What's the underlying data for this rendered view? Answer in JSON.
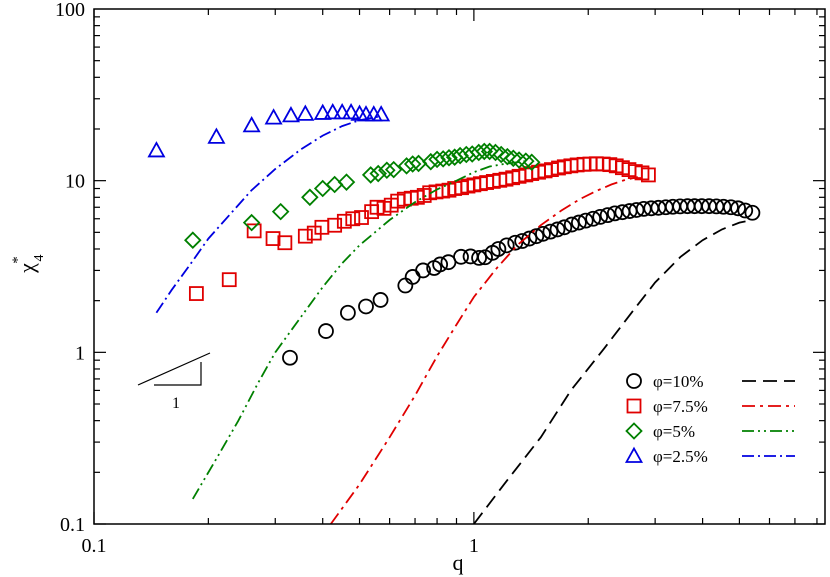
{
  "chart_data": {
    "type": "scatter",
    "title": "",
    "xlabel": "q",
    "ylabel_main": "χ",
    "ylabel_sub": "4",
    "ylabel_sup": "*",
    "xscale": "log",
    "yscale": "log",
    "xlim": [
      0.1,
      8.4
    ],
    "ylim": [
      0.1,
      100
    ],
    "x_ticks": [
      {
        "value": 0.1,
        "label": "0.1"
      },
      {
        "value": 1,
        "label": "1"
      }
    ],
    "y_ticks": [
      {
        "value": 0.1,
        "label": "0.1"
      },
      {
        "value": 1,
        "label": "1"
      },
      {
        "value": 10,
        "label": "10"
      },
      {
        "value": 100,
        "label": "100"
      }
    ],
    "legend_position": "bottom-right",
    "slope_triangle_label": "1",
    "series": [
      {
        "name": "φ=10%",
        "marker": "circle",
        "color": "#000000",
        "dash": "14,7",
        "points": [
          [
            0.328,
            0.93
          ],
          [
            0.408,
            1.33
          ],
          [
            0.466,
            1.7
          ],
          [
            0.52,
            1.85
          ],
          [
            0.568,
            2.02
          ],
          [
            0.66,
            2.45
          ],
          [
            0.69,
            2.75
          ],
          [
            0.735,
            3.0
          ],
          [
            0.786,
            3.1
          ],
          [
            0.815,
            3.25
          ],
          [
            0.857,
            3.35
          ],
          [
            0.925,
            3.6
          ],
          [
            0.98,
            3.62
          ],
          [
            1.032,
            3.55
          ],
          [
            1.07,
            3.58
          ],
          [
            1.12,
            3.8
          ],
          [
            1.16,
            4.0
          ],
          [
            1.22,
            4.2
          ],
          [
            1.285,
            4.35
          ],
          [
            1.34,
            4.45
          ],
          [
            1.4,
            4.6
          ],
          [
            1.46,
            4.75
          ],
          [
            1.52,
            4.9
          ],
          [
            1.59,
            5.05
          ],
          [
            1.66,
            5.2
          ],
          [
            1.73,
            5.35
          ],
          [
            1.81,
            5.55
          ],
          [
            1.89,
            5.7
          ],
          [
            1.97,
            5.85
          ],
          [
            2.06,
            6.0
          ],
          [
            2.15,
            6.15
          ],
          [
            2.25,
            6.3
          ],
          [
            2.35,
            6.45
          ],
          [
            2.46,
            6.55
          ],
          [
            2.57,
            6.65
          ],
          [
            2.68,
            6.75
          ],
          [
            2.8,
            6.85
          ],
          [
            2.93,
            6.9
          ],
          [
            3.06,
            6.95
          ],
          [
            3.2,
            7.0
          ],
          [
            3.34,
            7.05
          ],
          [
            3.49,
            7.08
          ],
          [
            3.65,
            7.1
          ],
          [
            3.81,
            7.1
          ],
          [
            3.98,
            7.1
          ],
          [
            4.16,
            7.1
          ],
          [
            4.35,
            7.08
          ],
          [
            4.54,
            7.05
          ],
          [
            4.75,
            7.0
          ],
          [
            4.96,
            6.9
          ],
          [
            5.18,
            6.7
          ],
          [
            5.41,
            6.5
          ]
        ],
        "theory": [
          [
            1.0,
            0.1
          ],
          [
            1.2,
            0.17
          ],
          [
            1.5,
            0.32
          ],
          [
            1.8,
            0.6
          ],
          [
            2.2,
            1.05
          ],
          [
            2.6,
            1.7
          ],
          [
            3.0,
            2.55
          ],
          [
            3.5,
            3.6
          ],
          [
            4.0,
            4.5
          ],
          [
            4.5,
            5.2
          ],
          [
            5.0,
            5.7
          ],
          [
            5.4,
            5.9
          ]
        ]
      },
      {
        "name": "φ=7.5%",
        "marker": "square",
        "color": "#e00000",
        "dash": "13,5,3,5",
        "points": [
          [
            0.186,
            2.2
          ],
          [
            0.227,
            2.65
          ],
          [
            0.264,
            5.1
          ],
          [
            0.296,
            4.6
          ],
          [
            0.318,
            4.35
          ],
          [
            0.36,
            4.75
          ],
          [
            0.38,
            4.95
          ],
          [
            0.398,
            5.35
          ],
          [
            0.43,
            5.5
          ],
          [
            0.456,
            5.8
          ],
          [
            0.48,
            6.0
          ],
          [
            0.506,
            6.1
          ],
          [
            0.538,
            6.6
          ],
          [
            0.556,
            7.0
          ],
          [
            0.58,
            6.9
          ],
          [
            0.606,
            7.2
          ],
          [
            0.63,
            7.6
          ],
          [
            0.656,
            7.8
          ],
          [
            0.684,
            7.9
          ],
          [
            0.71,
            8.0
          ],
          [
            0.74,
            8.2
          ],
          [
            0.765,
            8.5
          ],
          [
            0.795,
            8.6
          ],
          [
            0.828,
            8.7
          ],
          [
            0.86,
            8.8
          ],
          [
            0.89,
            9.0
          ],
          [
            0.928,
            9.1
          ],
          [
            0.965,
            9.3
          ],
          [
            1.0,
            9.45
          ],
          [
            1.04,
            9.6
          ],
          [
            1.08,
            9.75
          ],
          [
            1.125,
            9.9
          ],
          [
            1.17,
            10.05
          ],
          [
            1.215,
            10.2
          ],
          [
            1.265,
            10.4
          ],
          [
            1.315,
            10.6
          ],
          [
            1.37,
            10.8
          ],
          [
            1.42,
            11.0
          ],
          [
            1.48,
            11.2
          ],
          [
            1.54,
            11.4
          ],
          [
            1.6,
            11.6
          ],
          [
            1.67,
            11.85
          ],
          [
            1.73,
            12.05
          ],
          [
            1.8,
            12.2
          ],
          [
            1.87,
            12.35
          ],
          [
            1.95,
            12.45
          ],
          [
            2.02,
            12.5
          ],
          [
            2.1,
            12.55
          ],
          [
            2.19,
            12.5
          ],
          [
            2.28,
            12.4
          ],
          [
            2.37,
            12.2
          ],
          [
            2.46,
            11.9
          ],
          [
            2.56,
            11.6
          ],
          [
            2.66,
            11.3
          ],
          [
            2.77,
            11.1
          ],
          [
            2.88,
            10.8
          ]
        ],
        "theory": [
          [
            0.42,
            0.1
          ],
          [
            0.5,
            0.17
          ],
          [
            0.6,
            0.32
          ],
          [
            0.7,
            0.56
          ],
          [
            0.8,
            0.95
          ],
          [
            0.9,
            1.45
          ],
          [
            1.0,
            2.1
          ],
          [
            1.15,
            3.1
          ],
          [
            1.3,
            4.2
          ],
          [
            1.5,
            5.5
          ],
          [
            1.7,
            6.7
          ],
          [
            1.9,
            7.8
          ],
          [
            2.1,
            8.7
          ],
          [
            2.3,
            9.5
          ],
          [
            2.5,
            10.1
          ],
          [
            2.7,
            10.5
          ]
        ]
      },
      {
        "name": "φ=5%",
        "marker": "diamond",
        "color": "#008000",
        "dash": "12,4,2,4,2,4",
        "points": [
          [
            0.182,
            4.5
          ],
          [
            0.26,
            5.7
          ],
          [
            0.31,
            6.6
          ],
          [
            0.37,
            8.0
          ],
          [
            0.4,
            9.0
          ],
          [
            0.43,
            9.5
          ],
          [
            0.462,
            9.8
          ],
          [
            0.535,
            10.8
          ],
          [
            0.56,
            11.0
          ],
          [
            0.59,
            11.5
          ],
          [
            0.615,
            11.6
          ],
          [
            0.665,
            12.2
          ],
          [
            0.69,
            12.5
          ],
          [
            0.715,
            12.6
          ],
          [
            0.77,
            12.9
          ],
          [
            0.8,
            13.3
          ],
          [
            0.83,
            13.4
          ],
          [
            0.86,
            13.6
          ],
          [
            0.89,
            13.7
          ],
          [
            0.92,
            14.0
          ],
          [
            0.955,
            14.2
          ],
          [
            0.99,
            14.3
          ],
          [
            1.03,
            14.6
          ],
          [
            1.065,
            14.8
          ],
          [
            1.1,
            14.8
          ],
          [
            1.14,
            14.6
          ],
          [
            1.18,
            14.2
          ],
          [
            1.225,
            13.8
          ],
          [
            1.27,
            13.5
          ],
          [
            1.315,
            13.2
          ],
          [
            1.37,
            13.0
          ],
          [
            1.42,
            12.8
          ]
        ],
        "theory": [
          [
            0.182,
            0.14
          ],
          [
            0.21,
            0.24
          ],
          [
            0.24,
            0.4
          ],
          [
            0.27,
            0.66
          ],
          [
            0.3,
            1.0
          ],
          [
            0.35,
            1.6
          ],
          [
            0.4,
            2.4
          ],
          [
            0.45,
            3.3
          ],
          [
            0.5,
            4.2
          ],
          [
            0.6,
            5.9
          ],
          [
            0.7,
            7.5
          ],
          [
            0.8,
            8.9
          ],
          [
            0.9,
            10.0
          ],
          [
            1.0,
            11.2
          ],
          [
            1.1,
            12.1
          ],
          [
            1.2,
            12.5
          ],
          [
            1.3,
            12.8
          ],
          [
            1.4,
            13.1
          ]
        ]
      },
      {
        "name": "φ=2.5%",
        "marker": "triangle",
        "color": "#0000e0",
        "dash": "12,4,2,4",
        "points": [
          [
            0.146,
            15.0
          ],
          [
            0.21,
            18.0
          ],
          [
            0.26,
            21.0
          ],
          [
            0.297,
            23.3
          ],
          [
            0.33,
            24.0
          ],
          [
            0.36,
            24.5
          ],
          [
            0.4,
            24.8
          ],
          [
            0.425,
            25.0
          ],
          [
            0.45,
            25.0
          ],
          [
            0.475,
            25.0
          ],
          [
            0.5,
            24.5
          ],
          [
            0.52,
            24.3
          ],
          [
            0.545,
            24.3
          ],
          [
            0.57,
            24.3
          ]
        ],
        "theory": [
          [
            0.146,
            1.7
          ],
          [
            0.16,
            2.3
          ],
          [
            0.18,
            3.3
          ],
          [
            0.2,
            4.6
          ],
          [
            0.23,
            6.5
          ],
          [
            0.26,
            8.8
          ],
          [
            0.3,
            11.7
          ],
          [
            0.35,
            15.2
          ],
          [
            0.4,
            18.3
          ],
          [
            0.45,
            20.8
          ],
          [
            0.5,
            22.5
          ],
          [
            0.56,
            23.6
          ]
        ]
      }
    ]
  }
}
